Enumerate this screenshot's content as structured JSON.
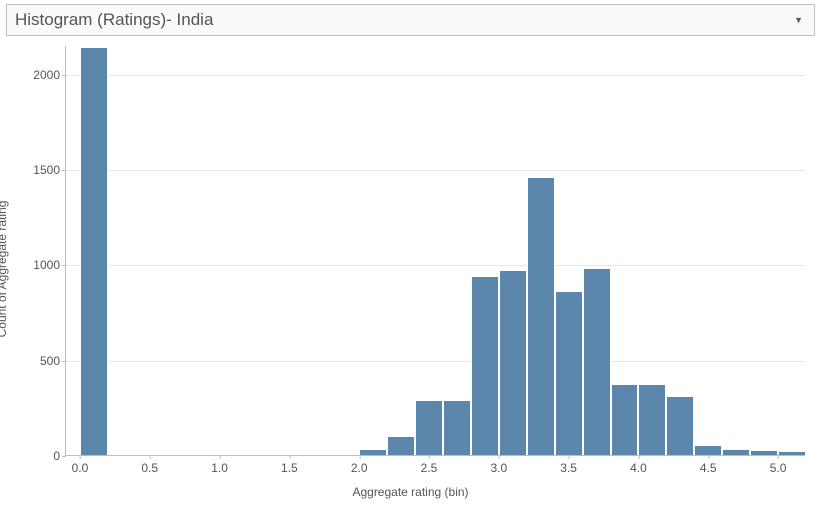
{
  "title": "Histogram (Ratings)- India",
  "chart": {
    "type": "histogram",
    "xlabel": "Aggregate rating (bin)",
    "ylabel": "Count of Aggregate rating",
    "bar_color": "#5b87ad",
    "grid_color": "#e7e7e7",
    "axis_color": "#bdbdbd",
    "background_color": "#ffffff",
    "xlim": [
      -0.1,
      5.2
    ],
    "ylim": [
      0,
      2150
    ],
    "xtick_step": 0.5,
    "xticks": [
      0.0,
      0.5,
      1.0,
      1.5,
      2.0,
      2.5,
      3.0,
      3.5,
      4.0,
      4.5,
      5.0
    ],
    "yticks": [
      0,
      500,
      1000,
      1500,
      2000
    ],
    "bin_width": 0.2,
    "data": [
      {
        "x": 0.0,
        "count": 2140
      },
      {
        "x": 1.8,
        "count": 1
      },
      {
        "x": 2.0,
        "count": 30
      },
      {
        "x": 2.2,
        "count": 100
      },
      {
        "x": 2.4,
        "count": 290
      },
      {
        "x": 2.6,
        "count": 290
      },
      {
        "x": 2.8,
        "count": 940
      },
      {
        "x": 3.0,
        "count": 970
      },
      {
        "x": 3.2,
        "count": 1460
      },
      {
        "x": 3.4,
        "count": 860
      },
      {
        "x": 3.6,
        "count": 980
      },
      {
        "x": 3.8,
        "count": 370
      },
      {
        "x": 4.0,
        "count": 370
      },
      {
        "x": 4.2,
        "count": 310
      },
      {
        "x": 4.4,
        "count": 55
      },
      {
        "x": 4.6,
        "count": 30
      },
      {
        "x": 4.8,
        "count": 25
      },
      {
        "x": 5.0,
        "count": 20
      }
    ],
    "title_fontsize": 17,
    "label_fontsize": 12,
    "tick_fontsize": 12
  }
}
